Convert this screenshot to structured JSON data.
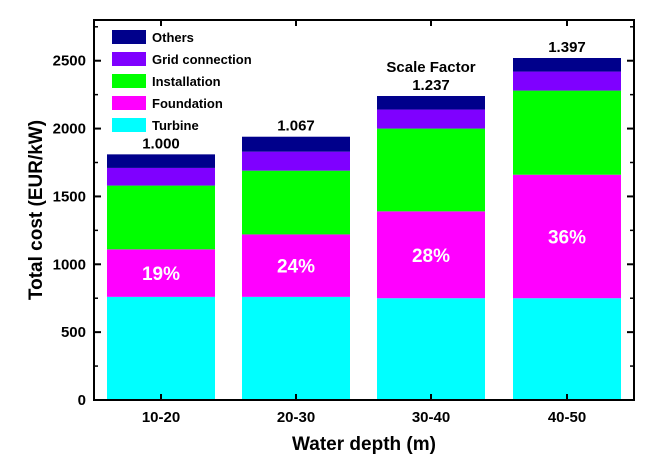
{
  "chart_data": {
    "type": "bar",
    "stacked": true,
    "xlabel": "Water depth (m)",
    "ylabel": "Total cost (EUR/kW)",
    "ylim": [
      0,
      2800
    ],
    "yticks": [
      0,
      500,
      1000,
      1500,
      2000,
      2500
    ],
    "categories": [
      "10-20",
      "20-30",
      "30-40",
      "40-50"
    ],
    "series": [
      {
        "name": "Turbine",
        "color": "#00ffff",
        "values": [
          760,
          760,
          750,
          750
        ]
      },
      {
        "name": "Foundation",
        "color": "#ff00ff",
        "values": [
          350,
          460,
          640,
          910
        ]
      },
      {
        "name": "Installation",
        "color": "#00ff00",
        "values": [
          470,
          470,
          610,
          620
        ]
      },
      {
        "name": "Grid connection",
        "color": "#7f00ff",
        "values": [
          130,
          140,
          140,
          140
        ]
      },
      {
        "name": "Others",
        "color": "#00008b",
        "values": [
          100,
          110,
          100,
          100
        ]
      }
    ],
    "legend_order": [
      "Others",
      "Grid connection",
      "Installation",
      "Foundation",
      "Turbine"
    ],
    "legend_position": "top-left",
    "scale_factor_title": "Scale Factor",
    "scale_factors": [
      "1.000",
      "1.067",
      "1.237",
      "1.397"
    ],
    "foundation_share_labels": [
      "19%",
      "24%",
      "28%",
      "36%"
    ],
    "grid": false
  }
}
